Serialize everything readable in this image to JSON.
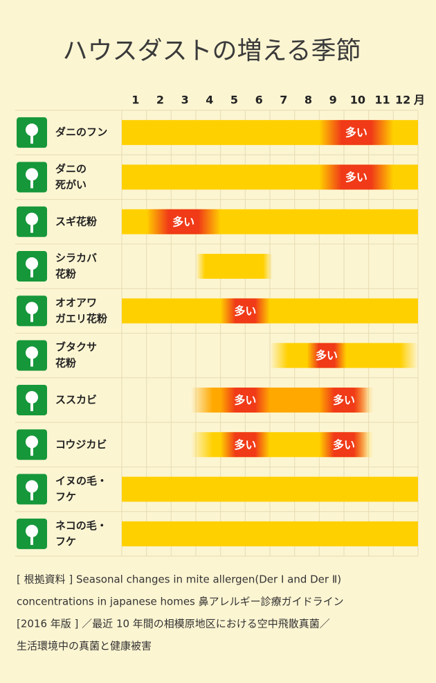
{
  "chart_data": {
    "type": "timeline",
    "title": "ハウスダストの増える季節",
    "categories": [
      "1",
      "2",
      "3",
      "4",
      "5",
      "6",
      "7",
      "8",
      "9",
      "10",
      "11",
      "12"
    ],
    "month_unit": "月",
    "xlim": [
      0,
      12
    ],
    "rows": [
      {
        "label_lines": [
          "ダニのフン"
        ],
        "start": 0,
        "end": 12,
        "color": "#ffd000",
        "peaks": [
          {
            "start": 8,
            "end": 11,
            "label": "多い"
          }
        ]
      },
      {
        "label_lines": [
          "ダニの",
          "死がい"
        ],
        "start": 0,
        "end": 12,
        "color": "#ffd000",
        "peaks": [
          {
            "start": 8,
            "end": 11,
            "label": "多い"
          }
        ]
      },
      {
        "label_lines": [
          "スギ花粉"
        ],
        "start": 0,
        "end": 12,
        "color": "#ffd000",
        "peaks": [
          {
            "start": 1,
            "end": 4,
            "label": "多い"
          }
        ]
      },
      {
        "label_lines": [
          "シラカバ",
          "花粉"
        ],
        "start": 3,
        "end": 6.1,
        "color": "#ffd000",
        "peaks": []
      },
      {
        "label_lines": [
          "オオアワ",
          "ガエリ花粉"
        ],
        "start": 0,
        "end": 12,
        "color": "#ffd000",
        "peaks": [
          {
            "start": 4,
            "end": 6,
            "label": "多い"
          }
        ]
      },
      {
        "label_lines": [
          "ブタクサ",
          "花粉"
        ],
        "start": 6,
        "end": 12,
        "color": "#ffd000",
        "peaks": [
          {
            "start": 7.5,
            "end": 9.1,
            "label": "多い"
          }
        ]
      },
      {
        "label_lines": [
          "ススカビ"
        ],
        "start": 2.8,
        "end": 10.2,
        "color": "#ffa800",
        "peaks": [
          {
            "start": 4,
            "end": 6,
            "label": "多い"
          },
          {
            "start": 8,
            "end": 10,
            "label": "多い"
          }
        ]
      },
      {
        "label_lines": [
          "コウジカビ"
        ],
        "start": 2.8,
        "end": 10.2,
        "color": "#ffd000",
        "peaks": [
          {
            "start": 4,
            "end": 6,
            "label": "多い"
          },
          {
            "start": 8,
            "end": 10,
            "label": "多い"
          }
        ]
      },
      {
        "label_lines": [
          "イヌの毛・",
          "フケ"
        ],
        "start": 0,
        "end": 12,
        "color": "#ffd000",
        "peaks": []
      },
      {
        "label_lines": [
          "ネコの毛・",
          "フケ"
        ],
        "start": 0,
        "end": 12,
        "color": "#ffd000",
        "peaks": []
      }
    ],
    "peak_color": "#f03a18",
    "icon_color": "#16973a",
    "notes": [
      "[ 根拠資料 ] Seasonal changes in mite allergen(Der Ⅰ and Der Ⅱ)",
      "concentrations in japanese homes  鼻アレルギー診療ガイドライン",
      "[2016 年版 ] ／最近 10 年間の相模原地区における空中飛散真菌／",
      "生活環境中の真菌と健康被害"
    ]
  }
}
